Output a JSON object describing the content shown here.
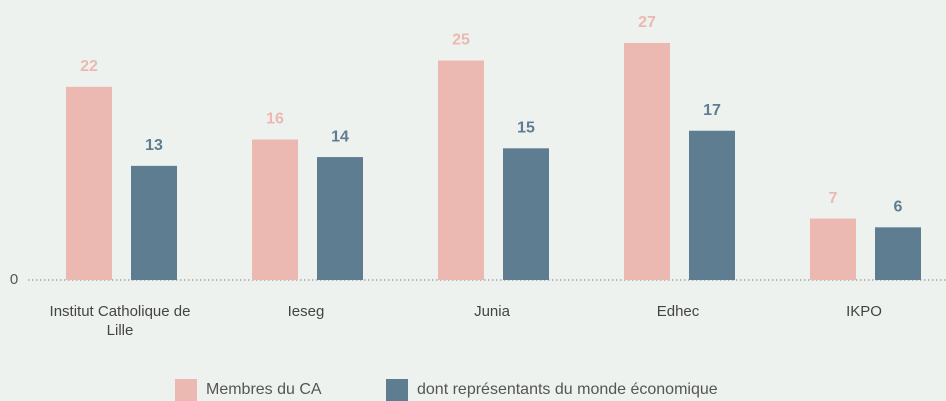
{
  "chart_data": {
    "type": "bar",
    "categories": [
      "Institut Catholique de Lille",
      "Ieseg",
      "Junia",
      "Edhec",
      "IKPO"
    ],
    "series": [
      {
        "name": "Membres du CA",
        "color": "#ecb8b2",
        "values": [
          22,
          16,
          25,
          27,
          7
        ]
      },
      {
        "name": "dont représentants du monde économique",
        "color": "#5f7d91",
        "values": [
          13,
          14,
          15,
          17,
          6
        ]
      }
    ],
    "ylim": [
      0,
      30
    ],
    "yticks": [
      0
    ],
    "legend": "bottom"
  }
}
